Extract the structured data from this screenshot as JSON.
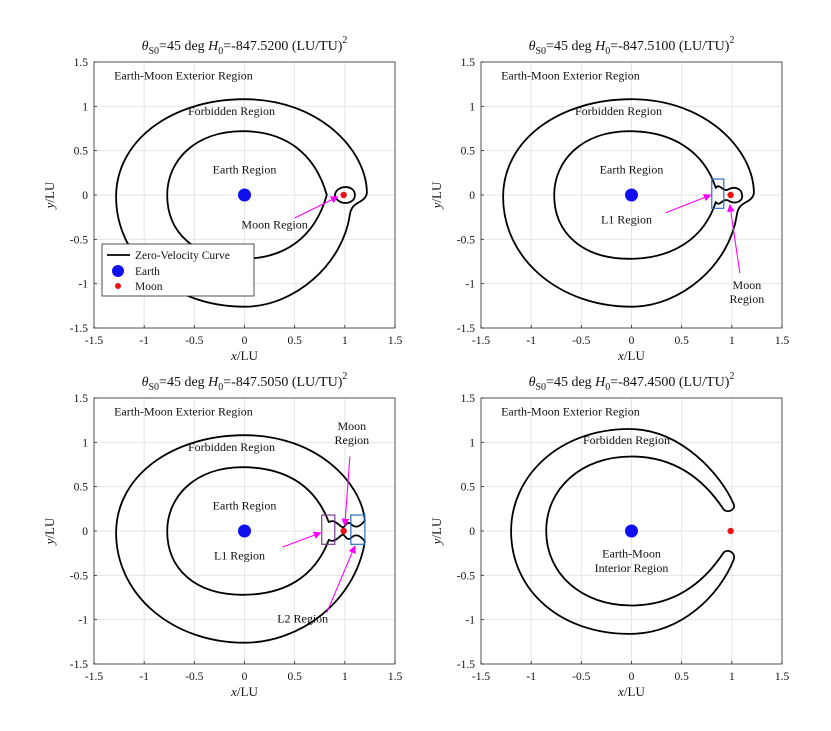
{
  "figure": {
    "panel_count": 4,
    "legend": {
      "curve": "Zero-Velocity Curve",
      "earth": "Earth",
      "moon": "Moon"
    }
  },
  "colors": {
    "curve": "#000000",
    "earth": "#1010ee",
    "moon": "#ee1111",
    "arrow": "#ff00ff",
    "box_blue": "#2a6fc0",
    "box_purple": "#7a3b8a",
    "grid": "#e6e6e6"
  },
  "chart_data": [
    {
      "type": "line",
      "title_prefix": "θ",
      "title_sub": "S0",
      "title_mid": "=45 deg H",
      "title_sub2": "0",
      "title_value": "=-847.5200 (LU/TU)",
      "title_sup": "2",
      "H0": -847.52,
      "xlabel": "x/LU",
      "ylabel": "y/LU",
      "xlim": [
        -1.5,
        1.5
      ],
      "ylim": [
        -1.5,
        1.5
      ],
      "xticks": [
        -1.5,
        -1,
        -0.5,
        0,
        0.5,
        1,
        1.5
      ],
      "yticks": [
        -1.5,
        -1,
        -0.5,
        0,
        0.5,
        1,
        1.5
      ],
      "xtick_labels": [
        "-1.5",
        "-1",
        "-0.5",
        "0",
        "0.5",
        "1",
        "1.5"
      ],
      "ytick_labels": [
        "-1.5",
        "-1",
        "-0.5",
        "0",
        "0.5",
        "1",
        "1.5"
      ],
      "grid": true,
      "earth": [
        0,
        0
      ],
      "moon": [
        0.988,
        0
      ],
      "annotations": [
        "Earth-Moon Exterior Region",
        "Forbidden Region",
        "Earth Region",
        "Moon Region"
      ],
      "show_legend": true
    },
    {
      "type": "line",
      "title_prefix": "θ",
      "title_sub": "S0",
      "title_mid": "=45 deg H",
      "title_sub2": "0",
      "title_value": "=-847.5100 (LU/TU)",
      "title_sup": "2",
      "H0": -847.51,
      "xlabel": "x/LU",
      "ylabel": "y/LU",
      "xlim": [
        -1.5,
        1.5
      ],
      "ylim": [
        -1.5,
        1.5
      ],
      "xticks": [
        -1.5,
        -1,
        -0.5,
        0,
        0.5,
        1,
        1.5
      ],
      "yticks": [
        -1.5,
        -1,
        -0.5,
        0,
        0.5,
        1,
        1.5
      ],
      "xtick_labels": [
        "-1.5",
        "-1",
        "-0.5",
        "0",
        "0.5",
        "1",
        "1.5"
      ],
      "ytick_labels": [
        "-1.5",
        "-1",
        "-0.5",
        "0",
        "0.5",
        "1",
        "1.5"
      ],
      "grid": true,
      "earth": [
        0,
        0
      ],
      "moon": [
        0.988,
        0
      ],
      "annotations": [
        "Earth-Moon Exterior Region",
        "Forbidden Region",
        "Earth Region",
        "L1 Region",
        "Moon",
        "Region"
      ],
      "show_legend": false
    },
    {
      "type": "line",
      "title_prefix": "θ",
      "title_sub": "S0",
      "title_mid": "=45 deg H",
      "title_sub2": "0",
      "title_value": "=-847.5050 (LU/TU)",
      "title_sup": "2",
      "H0": -847.505,
      "xlabel": "x/LU",
      "ylabel": "y/LU",
      "xlim": [
        -1.5,
        1.5
      ],
      "ylim": [
        -1.5,
        1.5
      ],
      "xticks": [
        -1.5,
        -1,
        -0.5,
        0,
        0.5,
        1,
        1.5
      ],
      "yticks": [
        -1.5,
        -1,
        -0.5,
        0,
        0.5,
        1,
        1.5
      ],
      "xtick_labels": [
        "-1.5",
        "-1",
        "-0.5",
        "0",
        "0.5",
        "1",
        "1.5"
      ],
      "ytick_labels": [
        "-1.5",
        "-1",
        "-0.5",
        "0",
        "0.5",
        "1",
        "1.5"
      ],
      "grid": true,
      "earth": [
        0,
        0
      ],
      "moon": [
        0.988,
        0
      ],
      "annotations": [
        "Earth-Moon Exterior Region",
        "Forbidden Region",
        "Earth Region",
        "Moon",
        "Region",
        "L1 Region",
        "L2 Region"
      ],
      "show_legend": false
    },
    {
      "type": "line",
      "title_prefix": "θ",
      "title_sub": "S0",
      "title_mid": "=45 deg H",
      "title_sub2": "0",
      "title_value": "=-847.4500 (LU/TU)",
      "title_sup": "2",
      "H0": -847.45,
      "xlabel": "x/LU",
      "ylabel": "y/LU",
      "xlim": [
        -1.5,
        1.5
      ],
      "ylim": [
        -1.5,
        1.5
      ],
      "xticks": [
        -1.5,
        -1,
        -0.5,
        0,
        0.5,
        1,
        1.5
      ],
      "yticks": [
        -1.5,
        -1,
        -0.5,
        0,
        0.5,
        1,
        1.5
      ],
      "xtick_labels": [
        "-1.5",
        "-1",
        "-0.5",
        "0",
        "0.5",
        "1",
        "1.5"
      ],
      "ytick_labels": [
        "-1.5",
        "-1",
        "-0.5",
        "0",
        "0.5",
        "1",
        "1.5"
      ],
      "grid": true,
      "earth": [
        0,
        0
      ],
      "moon": [
        0.988,
        0
      ],
      "annotations": [
        "Earth-Moon Exterior Region",
        "Forbidden Region",
        "Earth-Moon",
        "Interior Region"
      ],
      "show_legend": false
    }
  ]
}
